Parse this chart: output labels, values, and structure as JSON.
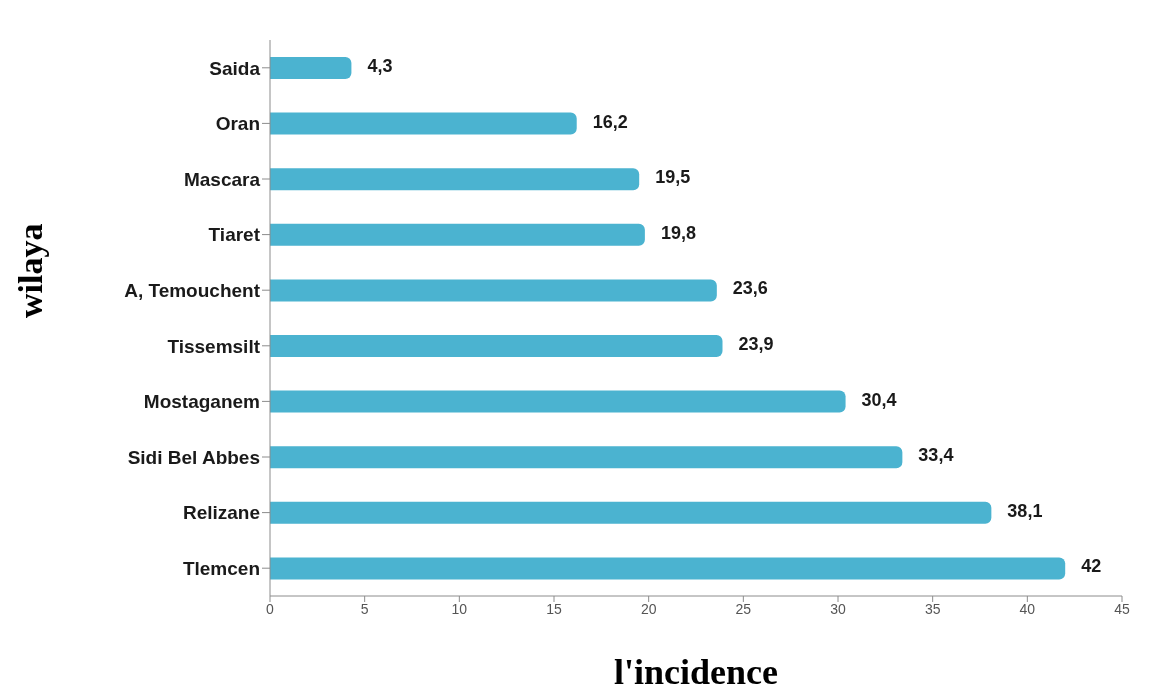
{
  "chart_data": {
    "type": "bar",
    "orientation": "horizontal",
    "categories": [
      "Saida",
      "Oran",
      "Mascara",
      "Tiaret",
      "A, Temouchent",
      "Tissemsilt",
      "Mostaganem",
      "Sidi Bel Abbes",
      "Relizane",
      "Tlemcen"
    ],
    "values": [
      4.3,
      16.2,
      19.5,
      19.8,
      23.6,
      23.9,
      30.4,
      33.4,
      38.1,
      42
    ],
    "value_labels": [
      "4,3",
      "16,2",
      "19,5",
      "19,8",
      "23,6",
      "23,9",
      "30,4",
      "33,4",
      "38,1",
      "42"
    ],
    "color": "#4bb3d0",
    "xlim": [
      0,
      45
    ],
    "xticks": [
      0,
      5,
      10,
      15,
      20,
      25,
      30,
      35,
      40,
      45
    ],
    "xlabel": "l'incidence",
    "ylabel": "wilaya"
  }
}
